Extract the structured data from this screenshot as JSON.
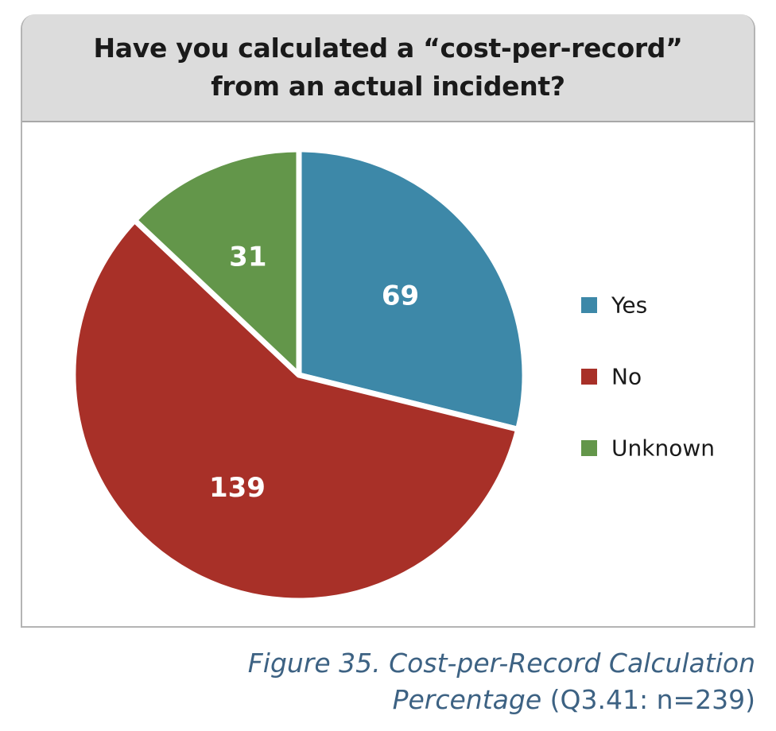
{
  "chart_data": {
    "type": "pie",
    "title_lines": [
      "Have you calculated a “cost-per-record”",
      "from an actual incident?"
    ],
    "categories": [
      "Yes",
      "No",
      "Unknown"
    ],
    "values": [
      69,
      139,
      31
    ],
    "data_labels": [
      "69",
      "139",
      "31"
    ],
    "colors": [
      "#3d88a8",
      "#a83028",
      "#63964a"
    ],
    "legend_position": "right",
    "start_angle_deg": 0,
    "direction": "clockwise"
  },
  "caption": {
    "line1": "Figure 35. Cost-per-Record Calculation",
    "line2_italic": "Percentage",
    "line2_rest": " (Q3.41: n=239)"
  }
}
